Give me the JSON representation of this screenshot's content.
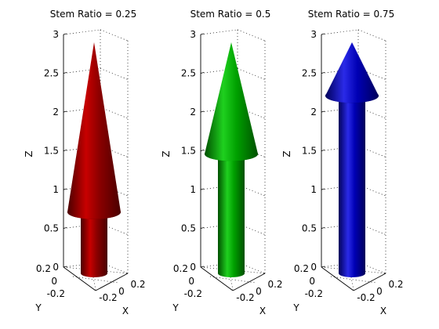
{
  "figure": {
    "panels": [
      {
        "title": "Stem Ratio = 0.25",
        "stem_ratio": 0.25,
        "color": "#8b0000",
        "color_light": "#c80000",
        "color_dark": "#4a0000"
      },
      {
        "title": "Stem Ratio = 0.5",
        "stem_ratio": 0.5,
        "color": "#00a000",
        "color_light": "#1fd01f",
        "color_dark": "#005000"
      },
      {
        "title": "Stem Ratio = 0.75",
        "stem_ratio": 0.75,
        "color": "#0000b4",
        "color_light": "#2a2ae8",
        "color_dark": "#00005a"
      }
    ],
    "axes": {
      "xlabel": "X",
      "ylabel": "Y",
      "zlabel": "Z",
      "z_ticks": [
        "0",
        "0.5",
        "1",
        "1.5",
        "2",
        "2.5",
        "3"
      ],
      "x_ticks": [
        "-0.2",
        "0",
        "0.2"
      ],
      "y_ticks": [
        "-0.2",
        "0",
        "0.2"
      ],
      "zlim": [
        0,
        3
      ],
      "grid": true
    }
  }
}
